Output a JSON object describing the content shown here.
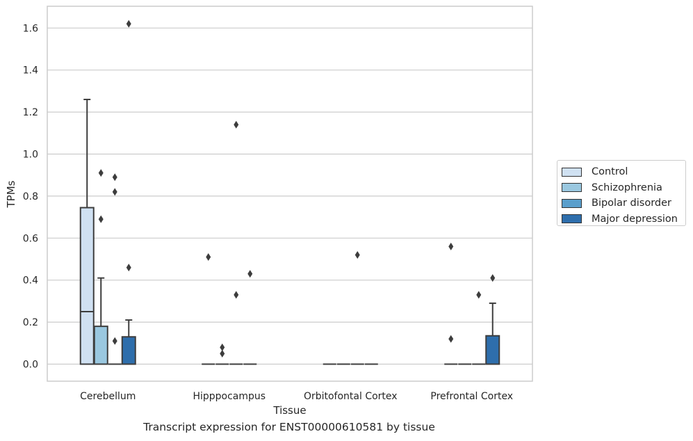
{
  "chart_data": {
    "type": "box",
    "title": "",
    "caption": "Transcript expression for ENST00000610581 by tissue",
    "xlabel": "Tissue",
    "ylabel": "TPMs",
    "ylim": [
      -0.08,
      1.7
    ],
    "yticks": [
      "0.0",
      "0.2",
      "0.4",
      "0.6",
      "0.8",
      "1.0",
      "1.2",
      "1.4",
      "1.6"
    ],
    "grid": true,
    "legend_position": "right",
    "categories": [
      "Cerebellum",
      "Hipppocampus",
      "Orbitofontal Cortex",
      "Prefrontal Cortex"
    ],
    "series": [
      {
        "name": "Control",
        "color": "#d0e1f2",
        "boxes": [
          {
            "q1": 0,
            "median": 0.25,
            "q3": 0.745,
            "whisker_low": 0,
            "whisker_high": 1.26,
            "outliers": []
          },
          {
            "q1": 0,
            "median": 0,
            "q3": 0,
            "whisker_low": 0,
            "whisker_high": 0,
            "outliers": [
              0.51
            ]
          },
          {
            "q1": 0,
            "median": 0,
            "q3": 0,
            "whisker_low": 0,
            "whisker_high": 0,
            "outliers": []
          },
          {
            "q1": 0,
            "median": 0,
            "q3": 0,
            "whisker_low": 0,
            "whisker_high": 0,
            "outliers": [
              0.12,
              0.56
            ]
          }
        ]
      },
      {
        "name": "Schizophrenia",
        "color": "#9ac8e0",
        "boxes": [
          {
            "q1": 0,
            "median": 0,
            "q3": 0.18,
            "whisker_low": 0,
            "whisker_high": 0.41,
            "outliers": [
              0.69,
              0.91
            ]
          },
          {
            "q1": 0,
            "median": 0,
            "q3": 0,
            "whisker_low": 0,
            "whisker_high": 0,
            "outliers": [
              0.05,
              0.08
            ]
          },
          {
            "q1": 0,
            "median": 0,
            "q3": 0,
            "whisker_low": 0,
            "whisker_high": 0,
            "outliers": []
          },
          {
            "q1": 0,
            "median": 0,
            "q3": 0,
            "whisker_low": 0,
            "whisker_high": 0,
            "outliers": []
          }
        ]
      },
      {
        "name": "Bipolar disorder",
        "color": "#5a9fcc",
        "boxes": [
          {
            "q1": 0,
            "median": 0,
            "q3": 0,
            "whisker_low": 0,
            "whisker_high": 0,
            "outliers": [
              0.11,
              0.82,
              0.89
            ]
          },
          {
            "q1": 0,
            "median": 0,
            "q3": 0,
            "whisker_low": 0,
            "whisker_high": 0,
            "outliers": [
              0.33,
              1.14
            ]
          },
          {
            "q1": 0,
            "median": 0,
            "q3": 0,
            "whisker_low": 0,
            "whisker_high": 0,
            "outliers": [
              0.52
            ]
          },
          {
            "q1": 0,
            "median": 0,
            "q3": 0,
            "whisker_low": 0,
            "whisker_high": 0,
            "outliers": [
              0.33
            ]
          }
        ]
      },
      {
        "name": "Major depression",
        "color": "#2e6eac",
        "boxes": [
          {
            "q1": 0,
            "median": 0,
            "q3": 0.13,
            "whisker_low": 0,
            "whisker_high": 0.21,
            "outliers": [
              0.46,
              1.62
            ]
          },
          {
            "q1": 0,
            "median": 0,
            "q3": 0,
            "whisker_low": 0,
            "whisker_high": 0,
            "outliers": [
              0.43
            ]
          },
          {
            "q1": 0,
            "median": 0,
            "q3": 0,
            "whisker_low": 0,
            "whisker_high": 0,
            "outliers": []
          },
          {
            "q1": 0,
            "median": 0,
            "q3": 0.135,
            "whisker_low": 0,
            "whisker_high": 0.29,
            "outliers": [
              0.41
            ]
          }
        ]
      }
    ]
  }
}
